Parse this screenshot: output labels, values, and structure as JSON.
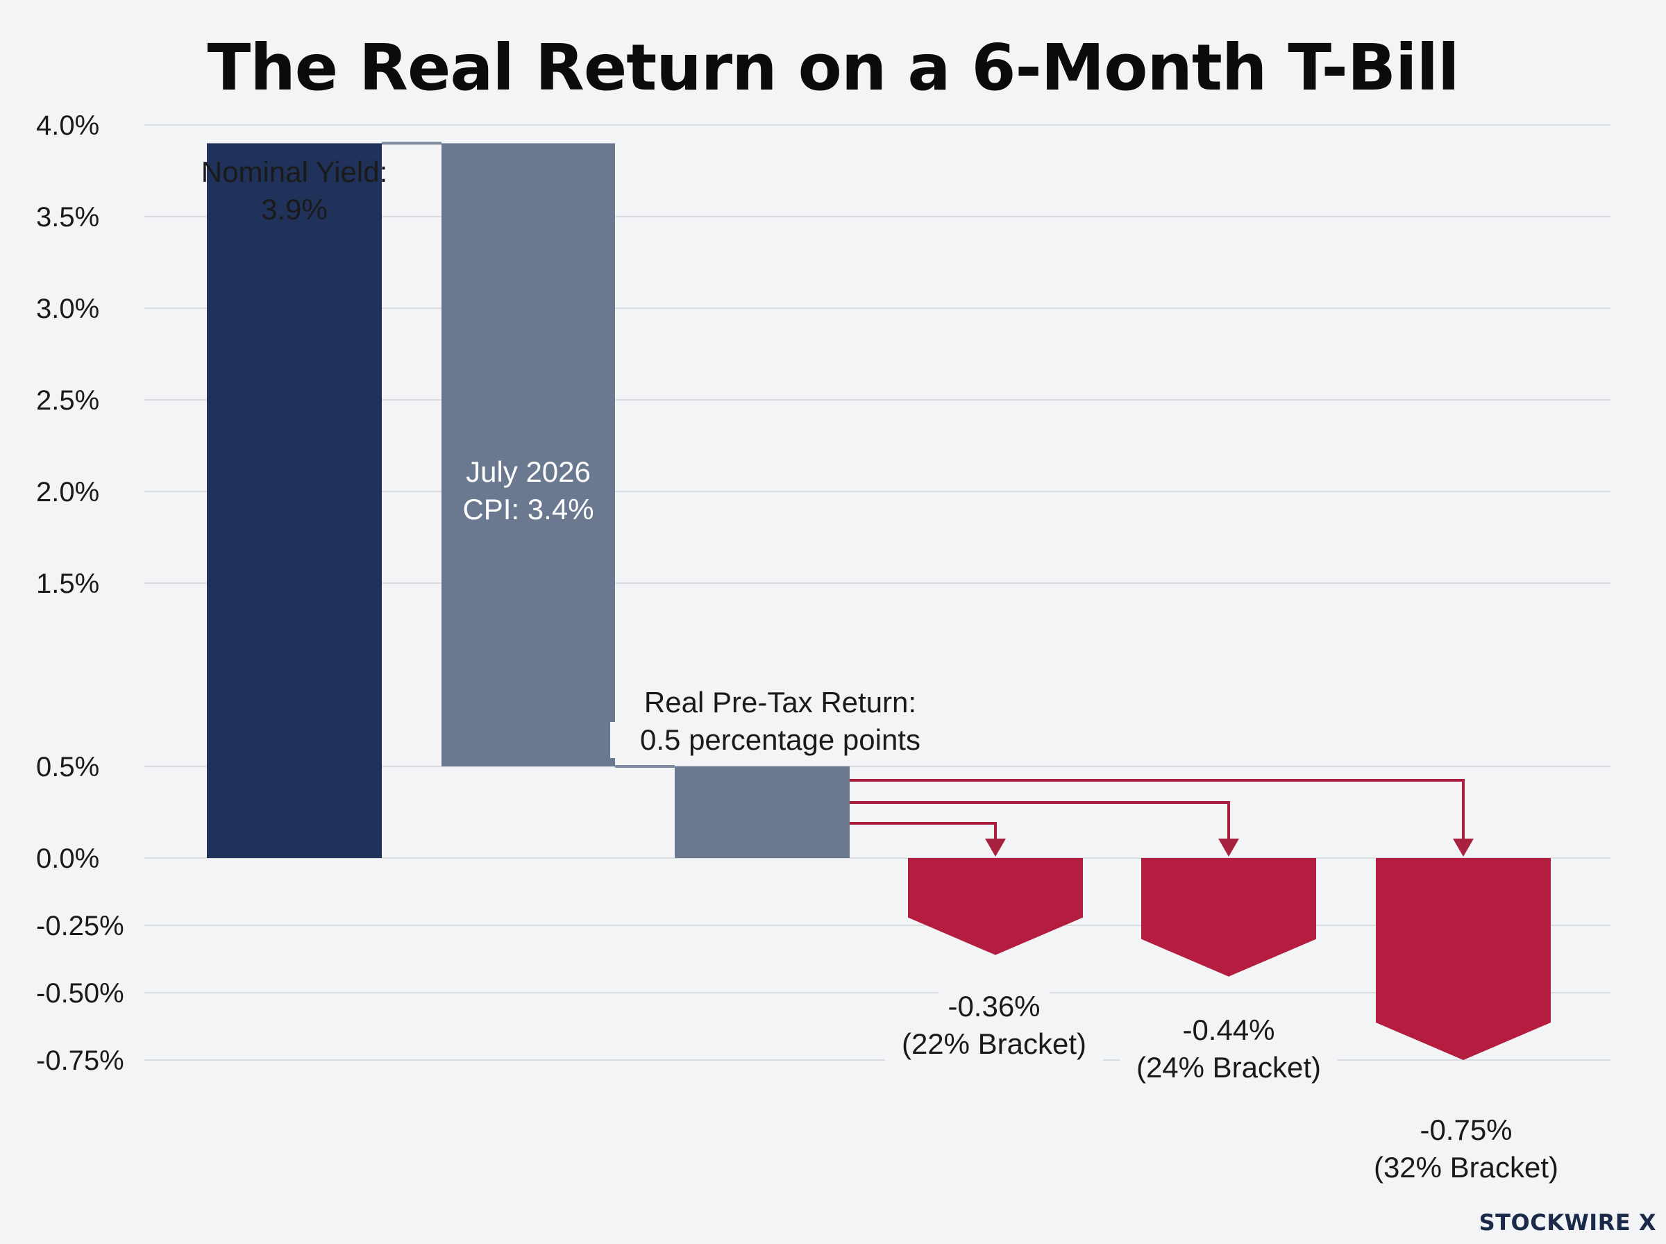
{
  "title": "The Real Return on a 6-Month T-Bill",
  "brand": "STOCKWIRE X",
  "colors": {
    "nominal": "#21325a",
    "cpi": "#6a7890",
    "real": "#6a7890",
    "tax": "#b51d40",
    "connector": "#a8213f",
    "grid": "#d9dce1",
    "background": "#f3f4f6"
  },
  "chart_data": {
    "type": "bar",
    "variant": "waterfall",
    "title": "The Real Return on a 6-Month T-Bill",
    "xlabel": "",
    "ylabel": "",
    "ylim": [
      -0.75,
      4.0
    ],
    "grid": true,
    "y_ticks": [
      {
        "value": 4.0,
        "label": "4.0%"
      },
      {
        "value": 3.5,
        "label": "3.5%"
      },
      {
        "value": 3.0,
        "label": "3.0%"
      },
      {
        "value": 2.5,
        "label": "2.5%"
      },
      {
        "value": 2.0,
        "label": "2.0%"
      },
      {
        "value": 1.5,
        "label": "1.5%"
      },
      {
        "value": 0.5,
        "label": "0.5%"
      },
      {
        "value": 0.0,
        "label": "0.0%"
      },
      {
        "value": -0.25,
        "label": "-0.25%"
      },
      {
        "value": -0.5,
        "label": "-0.50%"
      },
      {
        "value": -0.75,
        "label": "-0.75%"
      }
    ],
    "bars": [
      {
        "id": "nominal",
        "bottom": 0.0,
        "top": 3.9,
        "label_lines": [
          "Nominal Yield:",
          "3.9%"
        ]
      },
      {
        "id": "cpi",
        "bottom": 0.5,
        "top": 3.9,
        "label_lines": [
          "July 2026",
          "CPI: 3.4%"
        ]
      },
      {
        "id": "real",
        "bottom": 0.0,
        "top": 0.5,
        "label_lines": [
          "Real Pre-Tax Return:",
          "0.5 percentage points"
        ]
      },
      {
        "id": "tax22",
        "bottom": -0.36,
        "top": 0.0,
        "label_lines": [
          "-0.36%",
          "(22% Bracket)"
        ]
      },
      {
        "id": "tax24",
        "bottom": -0.44,
        "top": 0.0,
        "label_lines": [
          "-0.44%",
          "(24% Bracket)"
        ]
      },
      {
        "id": "tax32",
        "bottom": -0.75,
        "top": 0.0,
        "label_lines": [
          "-0.75%",
          "(32% Bracket)"
        ]
      }
    ]
  }
}
